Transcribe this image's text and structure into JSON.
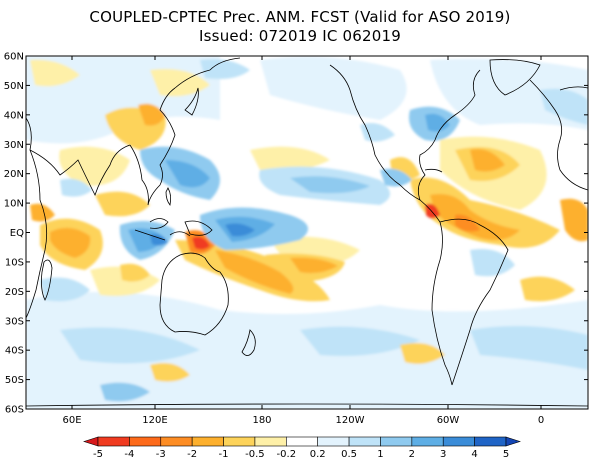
{
  "title": {
    "line1": "COUPLED-CPTEC Prec. ANM. FCST  (Valid for ASO 2019)",
    "line2": "Issued:  072019 IC 062019"
  },
  "map": {
    "lat_labels": [
      "60N",
      "50N",
      "40N",
      "30N",
      "20N",
      "10N",
      "EQ",
      "10S",
      "20S",
      "30S",
      "40S",
      "50S",
      "60S"
    ],
    "lon_labels": [
      "60E",
      "120E",
      "180",
      "120W",
      "60W",
      "0"
    ]
  },
  "colorbar": {
    "values": [
      "-5",
      "-4",
      "-3",
      "-2",
      "-1",
      "-0.5",
      "-0.2",
      "0.2",
      "0.5",
      "1",
      "2",
      "3",
      "4",
      "5"
    ],
    "colors": [
      "#d7191c",
      "#f03b20",
      "#fd6a1a",
      "#fd8d24",
      "#fdb02e",
      "#fdd35a",
      "#fef0a8",
      "#ffffff",
      "#e3f3fd",
      "#bfe3f8",
      "#8fcaef",
      "#5eaee5",
      "#3a8cd8",
      "#1f64c6",
      "#1446b4"
    ]
  }
}
